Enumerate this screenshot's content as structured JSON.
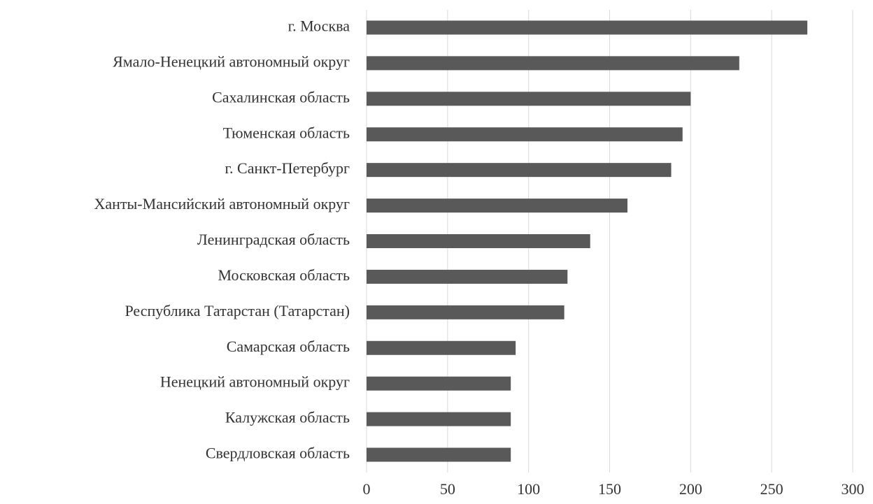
{
  "chart_data": {
    "type": "bar",
    "orientation": "horizontal",
    "categories": [
      "г. Москва",
      "Ямало-Ненецкий автономный округ",
      "Сахалинская область",
      "Тюменская область",
      "г. Санкт-Петербург",
      "Ханты-Мансийский автономный округ",
      "Ленинградская область",
      "Московская область",
      "Республика Татарстан (Татарстан)",
      "Самарская область",
      "Ненецкий автономный округ",
      "Калужская область",
      "Свердловская область"
    ],
    "values": [
      272,
      230,
      200,
      195,
      188,
      161,
      138,
      124,
      122,
      92,
      89,
      89,
      89
    ],
    "color": "#595959",
    "xlim": [
      0,
      300
    ],
    "xticks": [
      0,
      50,
      100,
      150,
      200,
      250,
      300
    ],
    "grid": true
  }
}
